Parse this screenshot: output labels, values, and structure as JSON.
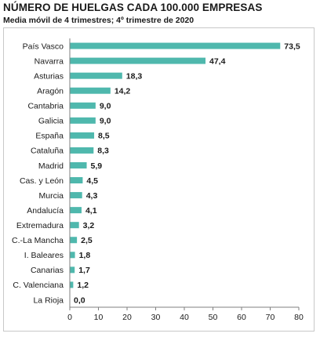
{
  "header": {
    "title": "NÚMERO DE HUELGAS CADA 100.000 EMPRESAS",
    "subtitle": "Media móvil de 4 trimestres; 4º trimestre de 2020"
  },
  "colors": {
    "bar": "#4fb8ad",
    "axis": "#7f7f7f",
    "frame": "#c8c8c8"
  },
  "chart_data": {
    "type": "bar",
    "orientation": "horizontal",
    "title": "NÚMERO DE HUELGAS CADA 100.000 EMPRESAS",
    "subtitle": "Media móvil de 4 trimestres; 4º trimestre de 2020",
    "categories": [
      "País Vasco",
      "Navarra",
      "Asturias",
      "Aragón",
      "Cantabria",
      "Galicia",
      "España",
      "Cataluña",
      "Madrid",
      "Cas. y León",
      "Murcia",
      "Andalucía",
      "Extremadura",
      "C.-La Mancha",
      "I. Baleares",
      "Canarias",
      "C. Valenciana",
      "La Rioja"
    ],
    "values": [
      73.5,
      47.4,
      18.3,
      14.2,
      9.0,
      9.0,
      8.5,
      8.3,
      5.9,
      4.5,
      4.3,
      4.1,
      3.2,
      2.5,
      1.8,
      1.7,
      1.2,
      0.0
    ],
    "value_labels": [
      "73,5",
      "47,4",
      "18,3",
      "14,2",
      "9,0",
      "9,0",
      "8,5",
      "8,3",
      "5,9",
      "4,5",
      "4,3",
      "4,1",
      "3,2",
      "2,5",
      "1,8",
      "1,7",
      "1,2",
      "0,0"
    ],
    "xlim": [
      0,
      80
    ],
    "xticks": [
      0,
      10,
      20,
      30,
      40,
      50,
      60,
      70,
      80
    ],
    "xticklabels": [
      "0",
      "10",
      "20",
      "30",
      "40",
      "50",
      "60",
      "70",
      "80"
    ],
    "grid": false,
    "legend": "none"
  }
}
